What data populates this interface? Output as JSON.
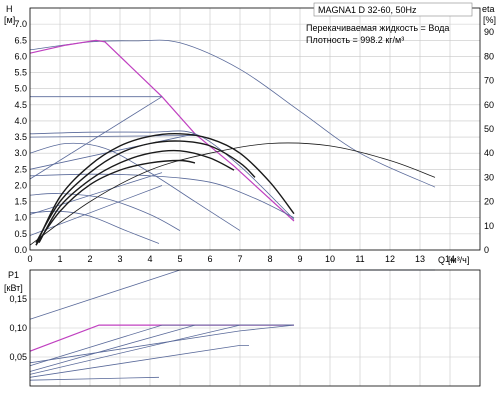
{
  "chart_data": [
    {
      "type": "line",
      "info": {
        "product": "MAGNA1 D 32-60, 50Hz",
        "liquid": "Перекачиваемая жидкость = Вода",
        "density": "Плотность = 998.2 кг/м³"
      },
      "ylabel": "H",
      "yunit": "[м]",
      "y2label": "eta",
      "y2unit": "[%]",
      "xlabel": "Q",
      "xunit": "[м³/ч]",
      "xlim": [
        0,
        15
      ],
      "ylim": [
        0,
        7.5
      ],
      "y2lim": [
        0,
        100
      ],
      "xticks": [
        "0",
        "1",
        "2",
        "3",
        "4",
        "5",
        "6",
        "7",
        "8",
        "9",
        "10",
        "11",
        "12",
        "13",
        "14"
      ],
      "yticks": [
        "0.0",
        "0.5",
        "1.0",
        "1.5",
        "2.0",
        "2.5",
        "3.0",
        "3.5",
        "4.0",
        "4.5",
        "5.0",
        "5.5",
        "6.0",
        "6.5",
        "7.0"
      ],
      "y2ticks": [
        "0",
        "10",
        "20",
        "30",
        "40",
        "50",
        "60",
        "70",
        "80",
        "90"
      ],
      "grid": true,
      "colors": {
        "curve": "#5a6a9a",
        "highlight": "#c040c0",
        "eta": "#1a1a1a"
      },
      "series": [
        {
          "kind": "head-max",
          "points": [
            [
              0,
              6.2
            ],
            [
              2,
              6.45
            ],
            [
              3.5,
              6.48
            ],
            [
              5,
              6.42
            ],
            [
              7,
              5.6
            ],
            [
              9,
              4.3
            ],
            [
              11,
              3.0
            ],
            [
              13.5,
              1.95
            ]
          ]
        },
        {
          "kind": "head-selected",
          "highlight": true,
          "points": [
            [
              0,
              6.1
            ],
            [
              1.2,
              6.35
            ],
            [
              2.2,
              6.5
            ],
            [
              2.5,
              6.45
            ],
            [
              4.4,
              4.75
            ],
            [
              5.5,
              3.6
            ],
            [
              6.8,
              2.6
            ],
            [
              8.8,
              0.9
            ]
          ]
        },
        {
          "kind": "head-const",
          "points": [
            [
              0,
              4.75
            ],
            [
              4.4,
              4.75
            ]
          ]
        },
        {
          "kind": "head-const",
          "points": [
            [
              0,
              3.5
            ],
            [
              5.5,
              3.55
            ]
          ]
        },
        {
          "kind": "head-prop",
          "points": [
            [
              0,
              3.6
            ],
            [
              2,
              3.65
            ],
            [
              4,
              3.65
            ],
            [
              5.5,
              3.6
            ],
            [
              7,
              2.6
            ],
            [
              8.8,
              0.95
            ]
          ]
        },
        {
          "kind": "head-low",
          "points": [
            [
              0,
              3.0
            ],
            [
              1.2,
              3.3
            ],
            [
              2.5,
              3.15
            ],
            [
              4,
              2.4
            ],
            [
              5.5,
              1.5
            ],
            [
              7,
              0.6
            ]
          ]
        },
        {
          "kind": "head-low",
          "points": [
            [
              0,
              2.3
            ],
            [
              2,
              2.35
            ],
            [
              4,
              2.3
            ],
            [
              6,
              2.1
            ],
            [
              7.5,
              1.6
            ],
            [
              8.8,
              1.0
            ]
          ]
        },
        {
          "kind": "head-low",
          "points": [
            [
              0,
              1.7
            ],
            [
              1,
              1.75
            ],
            [
              2.5,
              1.6
            ],
            [
              4,
              1.1
            ],
            [
              5,
              0.6
            ]
          ]
        },
        {
          "kind": "head-low",
          "points": [
            [
              0,
              1.15
            ],
            [
              1,
              1.2
            ],
            [
              2,
              1.05
            ],
            [
              3.2,
              0.6
            ],
            [
              4.3,
              0.2
            ]
          ]
        },
        {
          "kind": "system",
          "points": [
            [
              0,
              2.2
            ],
            [
              4.4,
              4.75
            ]
          ]
        },
        {
          "kind": "system",
          "points": [
            [
              0,
              2.5
            ],
            [
              5.5,
              3.6
            ]
          ]
        },
        {
          "kind": "system",
          "points": [
            [
              0,
              1.1
            ],
            [
              4.4,
              2.4
            ]
          ]
        },
        {
          "kind": "system",
          "points": [
            [
              0,
              0.45
            ],
            [
              4.4,
              2.0
            ]
          ]
        },
        {
          "kind": "eta",
          "points": [
            [
              0.2,
              2
            ],
            [
              1,
              22
            ],
            [
              2,
              35
            ],
            [
              3,
              43
            ],
            [
              4,
              47
            ],
            [
              5,
              48
            ],
            [
              6,
              46
            ],
            [
              7,
              40
            ],
            [
              8,
              28
            ],
            [
              8.8,
              15
            ]
          ]
        },
        {
          "kind": "eta",
          "points": [
            [
              0.2,
              3
            ],
            [
              1,
              20
            ],
            [
              2,
              32
            ],
            [
              3,
              40
            ],
            [
              4,
              44
            ],
            [
              5,
              45
            ],
            [
              6,
              43
            ],
            [
              7,
              36
            ],
            [
              7.5,
              30
            ]
          ]
        },
        {
          "kind": "eta",
          "points": [
            [
              0.3,
              3
            ],
            [
              1,
              18
            ],
            [
              2,
              29
            ],
            [
              3,
              36
            ],
            [
              4,
              40
            ],
            [
              5,
              41
            ],
            [
              6,
              38
            ],
            [
              6.8,
              33
            ]
          ]
        },
        {
          "kind": "eta",
          "points": [
            [
              0.2,
              2
            ],
            [
              1,
              16
            ],
            [
              2,
              27
            ],
            [
              3,
              33
            ],
            [
              4,
              36
            ],
            [
              5,
              37
            ],
            [
              5.5,
              36
            ]
          ]
        },
        {
          "kind": "eta-max",
          "points": [
            [
              0,
              2
            ],
            [
              2,
              20
            ],
            [
              4,
              33
            ],
            [
              6,
              40
            ],
            [
              8,
              44
            ],
            [
              10,
              43
            ],
            [
              12,
              37
            ],
            [
              13.5,
              30
            ]
          ]
        }
      ]
    },
    {
      "type": "line",
      "ylabel": "P1",
      "yunit": "[кВт]",
      "xlim": [
        0,
        15
      ],
      "ylim": [
        0,
        0.2
      ],
      "yticks": [
        "0,05",
        "0,10",
        "0,15"
      ],
      "grid": true,
      "series": [
        {
          "kind": "power-max",
          "points": [
            [
              0,
              0.115
            ],
            [
              5,
              0.2
            ],
            [
              13.5,
              0.2
            ]
          ]
        },
        {
          "kind": "power-selected",
          "highlight": true,
          "points": [
            [
              0,
              0.06
            ],
            [
              2.3,
              0.105
            ],
            [
              8.8,
              0.105
            ]
          ]
        },
        {
          "kind": "power",
          "points": [
            [
              0,
              0.035
            ],
            [
              4.4,
              0.105
            ],
            [
              8.8,
              0.105
            ]
          ]
        },
        {
          "kind": "power",
          "points": [
            [
              0,
              0.025
            ],
            [
              5.5,
              0.105
            ],
            [
              8.8,
              0.105
            ]
          ]
        },
        {
          "kind": "power",
          "points": [
            [
              0,
              0.02
            ],
            [
              7,
              0.105
            ],
            [
              8.8,
              0.105
            ]
          ]
        },
        {
          "kind": "power",
          "points": [
            [
              0,
              0.015
            ],
            [
              7,
              0.07
            ],
            [
              7.3,
              0.07
            ]
          ]
        },
        {
          "kind": "power",
          "points": [
            [
              0,
              0.01
            ],
            [
              4.3,
              0.015
            ]
          ]
        },
        {
          "kind": "power",
          "points": [
            [
              0,
              0.04
            ],
            [
              7,
              0.095
            ],
            [
              8.8,
              0.105
            ]
          ]
        }
      ]
    }
  ]
}
